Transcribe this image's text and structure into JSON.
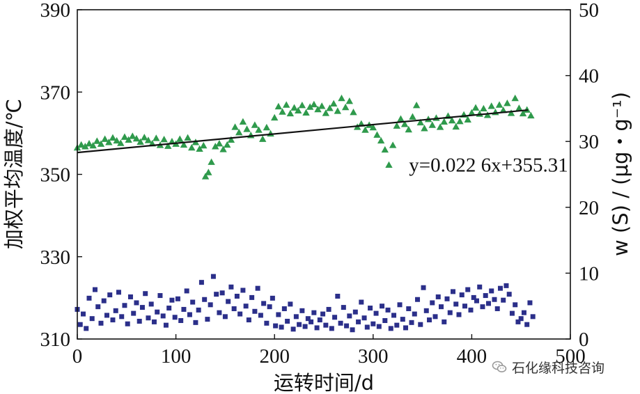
{
  "chart_data": {
    "type": "scatter",
    "title": "",
    "xlabel": "运转时间/d",
    "ylabel_left": "加权平均温度/℃",
    "ylabel_right": "w (S) / (μg・g⁻¹)",
    "xlim": [
      0,
      500
    ],
    "ylim_left": [
      310,
      390
    ],
    "ylim_right": [
      0,
      50
    ],
    "x_ticks": [
      "0",
      "100",
      "200",
      "300",
      "400",
      "500"
    ],
    "y_left_ticks": [
      "310",
      "330",
      "350",
      "370",
      "390"
    ],
    "y_right_ticks": [
      "0",
      "10",
      "20",
      "30",
      "40",
      "50"
    ],
    "series": [
      {
        "axis": "left",
        "marker": "triangle",
        "color": "#2f9a4c",
        "trend": [
          355.31,
          0.0226
        ],
        "values": [
          [
            0,
            356.5
          ],
          [
            4,
            357.2
          ],
          [
            8,
            356.8
          ],
          [
            12,
            357.5
          ],
          [
            16,
            357.0
          ],
          [
            20,
            358.1
          ],
          [
            24,
            357.4
          ],
          [
            28,
            358.6
          ],
          [
            32,
            357.8
          ],
          [
            36,
            358.9
          ],
          [
            40,
            358.2
          ],
          [
            44,
            357.6
          ],
          [
            48,
            359.1
          ],
          [
            52,
            358.4
          ],
          [
            56,
            359.3
          ],
          [
            60,
            358.7
          ],
          [
            64,
            357.9
          ],
          [
            68,
            359.0
          ],
          [
            72,
            358.3
          ],
          [
            76,
            357.5
          ],
          [
            80,
            358.8
          ],
          [
            84,
            357.1
          ],
          [
            88,
            358.5
          ],
          [
            92,
            356.9
          ],
          [
            96,
            358.0
          ],
          [
            100,
            357.4
          ],
          [
            104,
            358.6
          ],
          [
            108,
            357.2
          ],
          [
            112,
            358.9
          ],
          [
            116,
            356.5
          ],
          [
            120,
            357.8
          ],
          [
            124,
            356.2
          ],
          [
            128,
            357.0
          ],
          [
            130,
            349.5
          ],
          [
            133,
            350.5
          ],
          [
            136,
            353.0
          ],
          [
            140,
            356.8
          ],
          [
            144,
            357.5
          ],
          [
            148,
            356.1
          ],
          [
            152,
            357.2
          ],
          [
            156,
            358.4
          ],
          [
            160,
            361.5
          ],
          [
            164,
            360.2
          ],
          [
            168,
            362.8
          ],
          [
            172,
            361.0
          ],
          [
            176,
            359.5
          ],
          [
            180,
            362.0
          ],
          [
            184,
            360.8
          ],
          [
            188,
            358.6
          ],
          [
            192,
            361.4
          ],
          [
            196,
            359.9
          ],
          [
            200,
            363.8
          ],
          [
            204,
            366.5
          ],
          [
            208,
            365.2
          ],
          [
            212,
            366.9
          ],
          [
            216,
            364.8
          ],
          [
            220,
            366.2
          ],
          [
            224,
            365.5
          ],
          [
            228,
            366.8
          ],
          [
            232,
            365.0
          ],
          [
            236,
            366.4
          ],
          [
            240,
            367.0
          ],
          [
            244,
            365.8
          ],
          [
            248,
            366.6
          ],
          [
            252,
            364.9
          ],
          [
            256,
            366.1
          ],
          [
            260,
            367.2
          ],
          [
            264,
            365.4
          ],
          [
            268,
            368.5
          ],
          [
            272,
            366.3
          ],
          [
            276,
            367.8
          ],
          [
            280,
            365.1
          ],
          [
            284,
            361.5
          ],
          [
            288,
            362.3
          ],
          [
            292,
            360.8
          ],
          [
            296,
            362.0
          ],
          [
            300,
            361.4
          ],
          [
            304,
            359.6
          ],
          [
            308,
            358.2
          ],
          [
            312,
            356.0
          ],
          [
            316,
            352.3
          ],
          [
            320,
            357.1
          ],
          [
            324,
            361.8
          ],
          [
            328,
            363.5
          ],
          [
            332,
            362.2
          ],
          [
            336,
            360.9
          ],
          [
            340,
            364.0
          ],
          [
            344,
            366.8
          ],
          [
            348,
            362.6
          ],
          [
            352,
            361.2
          ],
          [
            356,
            363.4
          ],
          [
            360,
            362.0
          ],
          [
            364,
            363.7
          ],
          [
            368,
            361.5
          ],
          [
            372,
            362.8
          ],
          [
            376,
            364.2
          ],
          [
            380,
            363.1
          ],
          [
            384,
            361.6
          ],
          [
            388,
            362.9
          ],
          [
            392,
            364.5
          ],
          [
            396,
            363.3
          ],
          [
            400,
            365.0
          ],
          [
            404,
            366.2
          ],
          [
            408,
            364.7
          ],
          [
            412,
            366.0
          ],
          [
            416,
            364.4
          ],
          [
            420,
            366.6
          ],
          [
            424,
            365.1
          ],
          [
            428,
            366.9
          ],
          [
            432,
            365.6
          ],
          [
            436,
            367.3
          ],
          [
            440,
            364.9
          ],
          [
            444,
            368.5
          ],
          [
            448,
            366.1
          ],
          [
            452,
            364.8
          ],
          [
            456,
            365.7
          ],
          [
            460,
            364.3
          ]
        ]
      },
      {
        "axis": "right",
        "marker": "square",
        "color": "#2b2f8a",
        "values": [
          [
            0,
            4.5
          ],
          [
            3,
            2.2
          ],
          [
            6,
            3.8
          ],
          [
            9,
            1.6
          ],
          [
            12,
            6.2
          ],
          [
            15,
            3.1
          ],
          [
            18,
            7.5
          ],
          [
            21,
            4.9
          ],
          [
            24,
            2.4
          ],
          [
            27,
            5.8
          ],
          [
            30,
            3.6
          ],
          [
            33,
            6.7
          ],
          [
            36,
            2.9
          ],
          [
            39,
            4.3
          ],
          [
            42,
            7.1
          ],
          [
            45,
            3.4
          ],
          [
            48,
            5.1
          ],
          [
            51,
            2.3
          ],
          [
            54,
            6.4
          ],
          [
            57,
            3.9
          ],
          [
            60,
            5.5
          ],
          [
            63,
            2.7
          ],
          [
            66,
            4.8
          ],
          [
            69,
            6.9
          ],
          [
            72,
            3.2
          ],
          [
            75,
            5.3
          ],
          [
            78,
            2.6
          ],
          [
            81,
            4.1
          ],
          [
            84,
            6.6
          ],
          [
            87,
            3.5
          ],
          [
            90,
            2.1
          ],
          [
            93,
            4.7
          ],
          [
            96,
            5.9
          ],
          [
            99,
            3.3
          ],
          [
            102,
            6.1
          ],
          [
            105,
            2.8
          ],
          [
            108,
            4.5
          ],
          [
            111,
            7.3
          ],
          [
            114,
            3.7
          ],
          [
            117,
            5.6
          ],
          [
            120,
            2.5
          ],
          [
            123,
            4.4
          ],
          [
            126,
            8.6
          ],
          [
            129,
            6.0
          ],
          [
            132,
            3.0
          ],
          [
            135,
            5.2
          ],
          [
            138,
            9.5
          ],
          [
            141,
            6.8
          ],
          [
            144,
            4.0
          ],
          [
            147,
            7.0
          ],
          [
            150,
            3.4
          ],
          [
            153,
            5.7
          ],
          [
            156,
            7.9
          ],
          [
            159,
            4.6
          ],
          [
            162,
            6.5
          ],
          [
            165,
            3.8
          ],
          [
            168,
            7.4
          ],
          [
            171,
            5.0
          ],
          [
            174,
            2.9
          ],
          [
            177,
            6.3
          ],
          [
            180,
            4.2
          ],
          [
            183,
            7.7
          ],
          [
            186,
            3.6
          ],
          [
            189,
            5.4
          ],
          [
            192,
            2.4
          ],
          [
            195,
            4.9
          ],
          [
            198,
            6.2
          ],
          [
            201,
            2.0
          ],
          [
            204,
            3.7
          ],
          [
            207,
            1.8
          ],
          [
            210,
            4.6
          ],
          [
            213,
            2.7
          ],
          [
            216,
            5.3
          ],
          [
            219,
            1.5
          ],
          [
            222,
            3.4
          ],
          [
            225,
            2.2
          ],
          [
            228,
            4.3
          ],
          [
            231,
            1.9
          ],
          [
            234,
            3.1
          ],
          [
            237,
            2.6
          ],
          [
            240,
            4.0
          ],
          [
            243,
            1.7
          ],
          [
            246,
            2.9
          ],
          [
            249,
            3.8
          ],
          [
            252,
            2.1
          ],
          [
            255,
            4.5
          ],
          [
            258,
            1.6
          ],
          [
            261,
            3.3
          ],
          [
            264,
            6.5
          ],
          [
            267,
            2.4
          ],
          [
            270,
            4.8
          ],
          [
            273,
            2.0
          ],
          [
            276,
            3.5
          ],
          [
            279,
            1.4
          ],
          [
            282,
            4.1
          ],
          [
            285,
            2.6
          ],
          [
            288,
            5.6
          ],
          [
            291,
            3.2
          ],
          [
            294,
            1.8
          ],
          [
            297,
            4.7
          ],
          [
            300,
            2.3
          ],
          [
            303,
            3.9
          ],
          [
            306,
            1.9
          ],
          [
            309,
            5.0
          ],
          [
            312,
            2.8
          ],
          [
            315,
            4.4
          ],
          [
            318,
            1.6
          ],
          [
            321,
            3.6
          ],
          [
            324,
            2.1
          ],
          [
            327,
            5.2
          ],
          [
            330,
            3.0
          ],
          [
            333,
            1.7
          ],
          [
            336,
            4.6
          ],
          [
            339,
            2.5
          ],
          [
            342,
            3.8
          ],
          [
            345,
            6.0
          ],
          [
            348,
            2.2
          ],
          [
            351,
            7.8
          ],
          [
            354,
            4.3
          ],
          [
            357,
            2.9
          ],
          [
            360,
            5.5
          ],
          [
            363,
            3.4
          ],
          [
            366,
            6.4
          ],
          [
            369,
            4.9
          ],
          [
            372,
            2.6
          ],
          [
            375,
            6.1
          ],
          [
            378,
            4.0
          ],
          [
            381,
            7.2
          ],
          [
            384,
            5.3
          ],
          [
            387,
            3.7
          ],
          [
            390,
            6.7
          ],
          [
            393,
            5.0
          ],
          [
            396,
            7.5
          ],
          [
            399,
            4.4
          ],
          [
            402,
            6.3
          ],
          [
            405,
            5.8
          ],
          [
            408,
            7.9
          ],
          [
            411,
            4.9
          ],
          [
            414,
            6.6
          ],
          [
            417,
            5.4
          ],
          [
            420,
            7.3
          ],
          [
            423,
            6.0
          ],
          [
            426,
            4.6
          ],
          [
            429,
            7.7
          ],
          [
            432,
            5.9
          ],
          [
            435,
            8.1
          ],
          [
            438,
            6.8
          ],
          [
            441,
            3.9
          ],
          [
            444,
            5.2
          ],
          [
            447,
            2.6
          ],
          [
            450,
            3.1
          ],
          [
            453,
            4.0
          ],
          [
            456,
            2.2
          ],
          [
            459,
            5.5
          ],
          [
            462,
            3.4
          ]
        ]
      }
    ],
    "annotations": [
      {
        "text": "y=0.022 6x+355.31",
        "x": 330,
        "y": 351
      }
    ]
  },
  "watermark": {
    "text": "石化缘科技咨询",
    "icon": "wechat-icon"
  }
}
